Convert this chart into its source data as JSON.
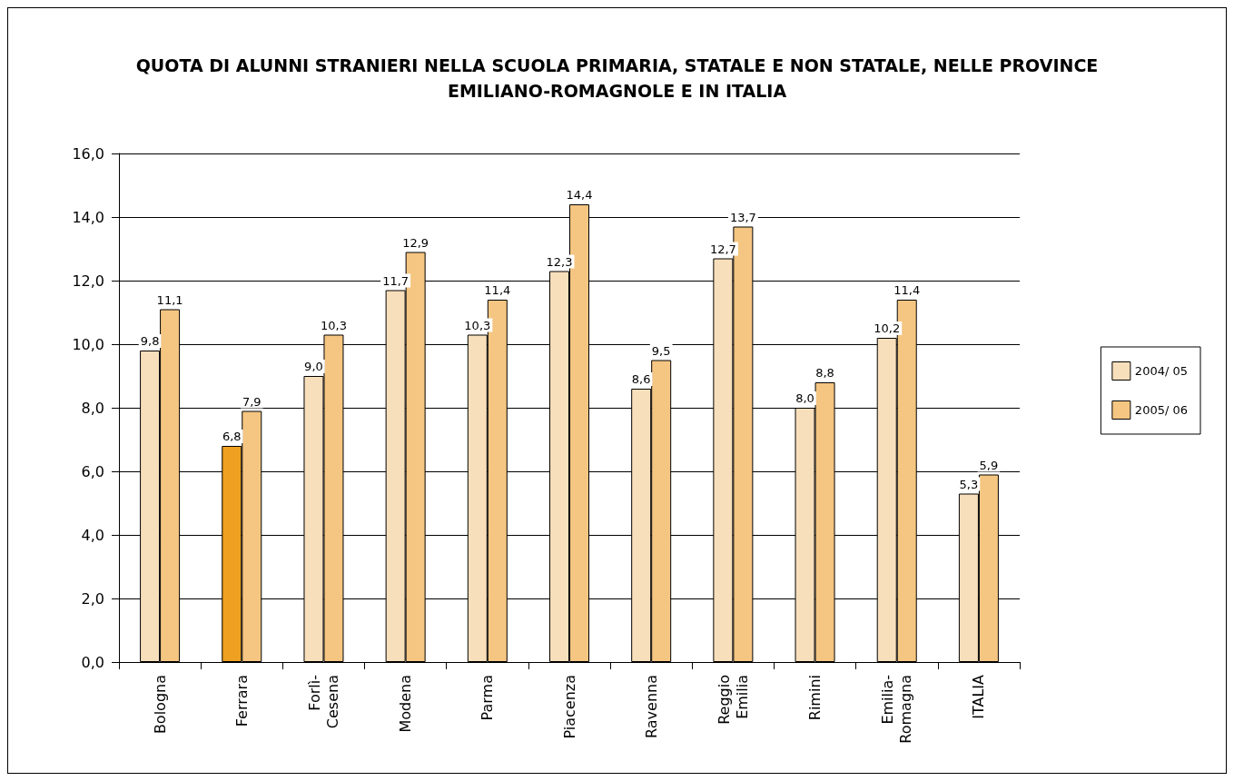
{
  "chart_data": {
    "type": "bar",
    "title": "QUOTA DI ALUNNI STRANIERI NELLA SCUOLA PRIMARIA, STATALE E NON STATALE, NELLE PROVINCE\nEMILIANO-ROMAGNOLE E IN ITALIA",
    "categories": [
      "Bologna",
      "Ferrara",
      "Forlì-\nCesena",
      "Modena",
      "Parma",
      "Piacenza",
      "Ravenna",
      "Reggio\nEmilia",
      "Rimini",
      "Emilia-\nRomagna",
      "ITALIA"
    ],
    "series": [
      {
        "name": "2004/ 05",
        "color": "#f8dfbb",
        "colors": [
          "#f8dfbb",
          "#eea020",
          "#f8dfbb",
          "#f8dfbb",
          "#f8dfbb",
          "#f8dfbb",
          "#f8dfbb",
          "#f8dfbb",
          "#f8dfbb",
          "#f8dfbb",
          "#f8dfbb"
        ],
        "values": [
          9.8,
          6.8,
          9.0,
          11.7,
          10.3,
          12.3,
          8.6,
          12.7,
          8.0,
          10.2,
          5.3
        ],
        "value_labels": [
          "9,8",
          "6,8",
          "9,0",
          "11,7",
          "10,3",
          "12,3",
          "8,6",
          "12,7",
          "8,0",
          "10,2",
          "5,3"
        ]
      },
      {
        "name": "2005/ 06",
        "color": "#f5c682",
        "values": [
          11.1,
          7.9,
          10.3,
          12.9,
          11.4,
          14.4,
          9.5,
          13.7,
          8.8,
          11.4,
          5.9
        ],
        "value_labels": [
          "11,1",
          "7,9",
          "10,3",
          "12,9",
          "11,4",
          "14,4",
          "9,5",
          "13,7",
          "8,8",
          "11,4",
          "5,9"
        ]
      }
    ],
    "ylim": [
      0,
      16
    ],
    "yticks": [
      {
        "value": 0,
        "label": "0,0"
      },
      {
        "value": 2,
        "label": "2,0"
      },
      {
        "value": 4,
        "label": "4,0"
      },
      {
        "value": 6,
        "label": "6,0"
      },
      {
        "value": 8,
        "label": "8,0"
      },
      {
        "value": 10,
        "label": "10,0"
      },
      {
        "value": 12,
        "label": "12,0"
      },
      {
        "value": 14,
        "label": "14,0"
      },
      {
        "value": 16,
        "label": "16,0"
      }
    ],
    "grid": "y",
    "legend": "right"
  }
}
